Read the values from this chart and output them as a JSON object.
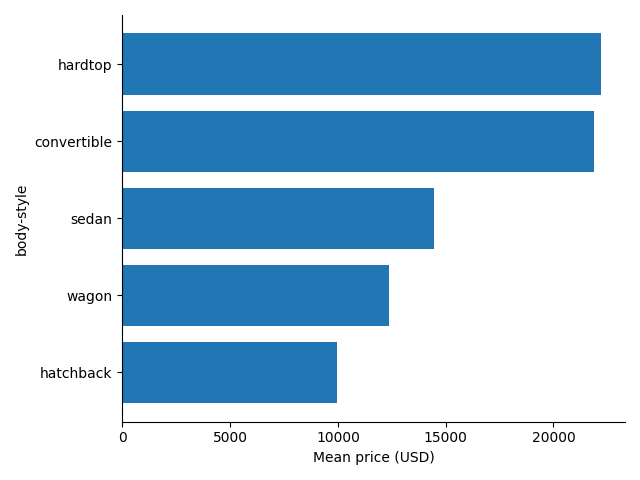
{
  "categories": [
    "hardtop",
    "convertible",
    "sedan",
    "wagon",
    "hatchback"
  ],
  "values": [
    22207,
    21890,
    14459,
    12371,
    9957
  ],
  "bar_color": "#2077b4",
  "xlabel": "Mean price (USD)",
  "ylabel": "body-style",
  "figsize": [
    6.4,
    4.8
  ],
  "dpi": 100,
  "bar_height": 0.8
}
